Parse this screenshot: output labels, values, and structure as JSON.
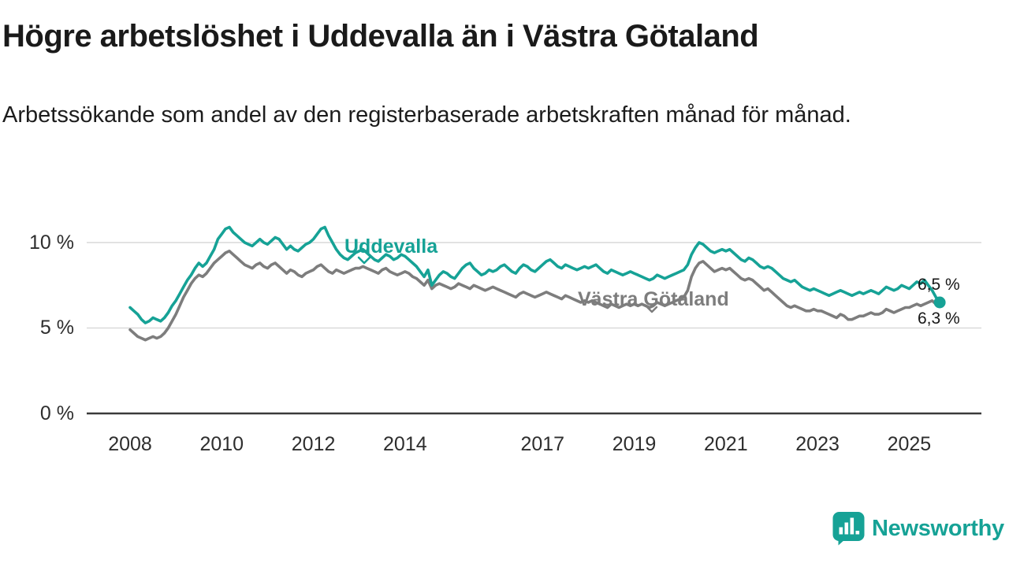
{
  "chart_data": {
    "type": "line",
    "title": "Högre arbetslöshet i Uddevalla än i Västra Götaland",
    "subtitle": "Arbetssökande som andel av den registerbaserade arbetskraften månad för månad.",
    "x_unit": "month",
    "x_start": "2008-01",
    "x_end": "2025-09",
    "x_ticks": [
      "2008",
      "2010",
      "2012",
      "2014",
      "2017",
      "2019",
      "2021",
      "2023",
      "2025"
    ],
    "y_ticks": [
      {
        "value": 10,
        "label": "10 %"
      },
      {
        "value": 5,
        "label": "5 %"
      },
      {
        "value": 0,
        "label": "0 %"
      }
    ],
    "ylim": [
      0,
      12
    ],
    "grid": "horizontal",
    "legend": "inline-labels",
    "series": [
      {
        "name": "Uddevalla",
        "color": "#16A296",
        "end_label": "6,5 %",
        "end_value": 6.5,
        "end_dot": true,
        "values": [
          6.2,
          6.0,
          5.8,
          5.5,
          5.3,
          5.4,
          5.6,
          5.5,
          5.4,
          5.6,
          5.9,
          6.3,
          6.6,
          7.0,
          7.4,
          7.8,
          8.1,
          8.5,
          8.8,
          8.6,
          8.8,
          9.2,
          9.6,
          10.2,
          10.5,
          10.8,
          10.9,
          10.6,
          10.4,
          10.2,
          10.0,
          9.9,
          9.8,
          10.0,
          10.2,
          10.0,
          9.9,
          10.1,
          10.3,
          10.2,
          9.9,
          9.6,
          9.8,
          9.6,
          9.5,
          9.7,
          9.9,
          10.0,
          10.2,
          10.5,
          10.8,
          10.9,
          10.4,
          10.0,
          9.6,
          9.3,
          9.1,
          9.0,
          9.2,
          9.4,
          9.5,
          9.6,
          9.4,
          9.2,
          9.0,
          8.9,
          9.1,
          9.3,
          9.2,
          9.0,
          9.1,
          9.3,
          9.2,
          9.0,
          8.8,
          8.6,
          8.3,
          8.0,
          8.4,
          7.5,
          7.8,
          8.1,
          8.3,
          8.2,
          8.0,
          7.9,
          8.2,
          8.5,
          8.7,
          8.8,
          8.5,
          8.3,
          8.1,
          8.2,
          8.4,
          8.3,
          8.4,
          8.6,
          8.7,
          8.5,
          8.3,
          8.2,
          8.5,
          8.7,
          8.6,
          8.4,
          8.3,
          8.5,
          8.7,
          8.9,
          9.0,
          8.8,
          8.6,
          8.5,
          8.7,
          8.6,
          8.5,
          8.4,
          8.5,
          8.6,
          8.5,
          8.6,
          8.7,
          8.5,
          8.3,
          8.2,
          8.4,
          8.3,
          8.2,
          8.1,
          8.2,
          8.3,
          8.2,
          8.1,
          8.0,
          7.9,
          7.8,
          7.9,
          8.1,
          8.0,
          7.9,
          8.0,
          8.1,
          8.2,
          8.3,
          8.4,
          8.7,
          9.3,
          9.7,
          10.0,
          9.9,
          9.7,
          9.5,
          9.4,
          9.5,
          9.6,
          9.5,
          9.6,
          9.4,
          9.2,
          9.0,
          8.9,
          9.1,
          9.0,
          8.8,
          8.6,
          8.5,
          8.6,
          8.5,
          8.3,
          8.1,
          7.9,
          7.8,
          7.7,
          7.8,
          7.6,
          7.4,
          7.3,
          7.2,
          7.3,
          7.2,
          7.1,
          7.0,
          6.9,
          7.0,
          7.1,
          7.2,
          7.1,
          7.0,
          6.9,
          7.0,
          7.1,
          7.0,
          7.1,
          7.2,
          7.1,
          7.0,
          7.2,
          7.4,
          7.3,
          7.2,
          7.3,
          7.5,
          7.4,
          7.3,
          7.5,
          7.7,
          7.6,
          7.8,
          7.5,
          7.2,
          6.8,
          6.5
        ]
      },
      {
        "name": "Västra Götaland",
        "color": "#7D7D7D",
        "end_label": "6,3 %",
        "end_value": 6.3,
        "end_dot": false,
        "values": [
          4.9,
          4.7,
          4.5,
          4.4,
          4.3,
          4.4,
          4.5,
          4.4,
          4.5,
          4.7,
          5.0,
          5.4,
          5.8,
          6.3,
          6.8,
          7.2,
          7.6,
          7.9,
          8.1,
          8.0,
          8.2,
          8.5,
          8.8,
          9.0,
          9.2,
          9.4,
          9.5,
          9.3,
          9.1,
          8.9,
          8.7,
          8.6,
          8.5,
          8.7,
          8.8,
          8.6,
          8.5,
          8.7,
          8.8,
          8.6,
          8.4,
          8.2,
          8.4,
          8.3,
          8.1,
          8.0,
          8.2,
          8.3,
          8.4,
          8.6,
          8.7,
          8.5,
          8.3,
          8.2,
          8.4,
          8.3,
          8.2,
          8.3,
          8.4,
          8.5,
          8.5,
          8.6,
          8.5,
          8.4,
          8.3,
          8.2,
          8.4,
          8.5,
          8.3,
          8.2,
          8.1,
          8.2,
          8.3,
          8.2,
          8.0,
          7.9,
          7.7,
          7.5,
          7.8,
          7.3,
          7.5,
          7.6,
          7.5,
          7.4,
          7.3,
          7.4,
          7.6,
          7.5,
          7.4,
          7.3,
          7.5,
          7.4,
          7.3,
          7.2,
          7.3,
          7.4,
          7.3,
          7.2,
          7.1,
          7.0,
          6.9,
          6.8,
          7.0,
          7.1,
          7.0,
          6.9,
          6.8,
          6.9,
          7.0,
          7.1,
          7.0,
          6.9,
          6.8,
          6.7,
          6.9,
          6.8,
          6.7,
          6.6,
          6.5,
          6.6,
          6.5,
          6.6,
          6.5,
          6.4,
          6.3,
          6.2,
          6.4,
          6.3,
          6.2,
          6.3,
          6.4,
          6.3,
          6.4,
          6.3,
          6.4,
          6.3,
          6.2,
          6.3,
          6.5,
          6.4,
          6.3,
          6.4,
          6.5,
          6.6,
          6.7,
          6.8,
          7.2,
          8.0,
          8.5,
          8.8,
          8.9,
          8.7,
          8.5,
          8.3,
          8.4,
          8.5,
          8.4,
          8.5,
          8.3,
          8.1,
          7.9,
          7.8,
          7.9,
          7.8,
          7.6,
          7.4,
          7.2,
          7.3,
          7.1,
          6.9,
          6.7,
          6.5,
          6.3,
          6.2,
          6.3,
          6.2,
          6.1,
          6.0,
          6.0,
          6.1,
          6.0,
          6.0,
          5.9,
          5.8,
          5.7,
          5.6,
          5.8,
          5.7,
          5.5,
          5.5,
          5.6,
          5.7,
          5.7,
          5.8,
          5.9,
          5.8,
          5.8,
          5.9,
          6.1,
          6.0,
          5.9,
          6.0,
          6.1,
          6.2,
          6.2,
          6.3,
          6.4,
          6.3,
          6.4,
          6.5,
          6.6,
          6.4,
          6.3
        ]
      }
    ]
  },
  "branding": {
    "name": "Newsworthy",
    "color": "#16A296",
    "icon": "bar-chart-bubble-icon"
  }
}
